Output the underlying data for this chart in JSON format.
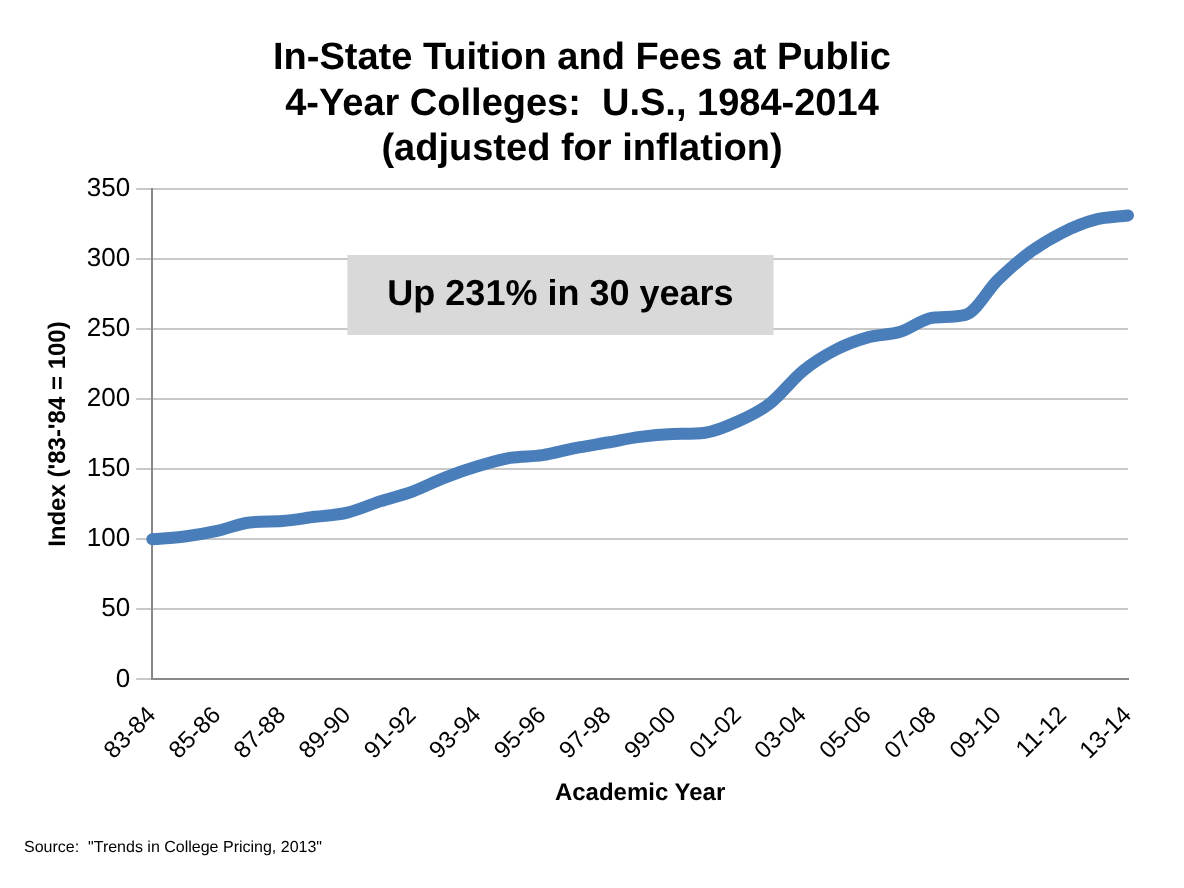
{
  "chart_data": {
    "type": "line",
    "title": "In-State Tuition and Fees at Public 4-Year Colleges:  U.S., 1984-2014 (adjusted for inflation)",
    "xlabel": "Academic Year",
    "ylabel": "Index ('83-'84 = 100)",
    "annotations": [
      "Up 231% in 30 years",
      "Source:  \"Trends in College Pricing, 2013\""
    ],
    "categories": [
      "83-84",
      null,
      "85-86",
      null,
      "87-88",
      null,
      "89-90",
      null,
      "91-92",
      null,
      "93-94",
      null,
      "95-96",
      null,
      "97-98",
      null,
      "99-00",
      null,
      "01-02",
      null,
      "03-04",
      null,
      "05-06",
      null,
      "07-08",
      null,
      "09-10",
      null,
      "11-12",
      null,
      "13-14"
    ],
    "series": [
      {
        "color": "#4a7ebb",
        "values": [
          100,
          102,
          106,
          112,
          113,
          116,
          119,
          127,
          134,
          144,
          152,
          158,
          160,
          165,
          169,
          173,
          175,
          176,
          184,
          197,
          220,
          235,
          244,
          248,
          258,
          260,
          285,
          305,
          319,
          328,
          331
        ]
      }
    ],
    "ylim": [
      0,
      350
    ],
    "yticks": [
      0,
      50,
      100,
      150,
      200,
      250,
      300,
      350
    ],
    "grid": "y",
    "legend": false,
    "marker": "none",
    "line_style": "solid"
  }
}
